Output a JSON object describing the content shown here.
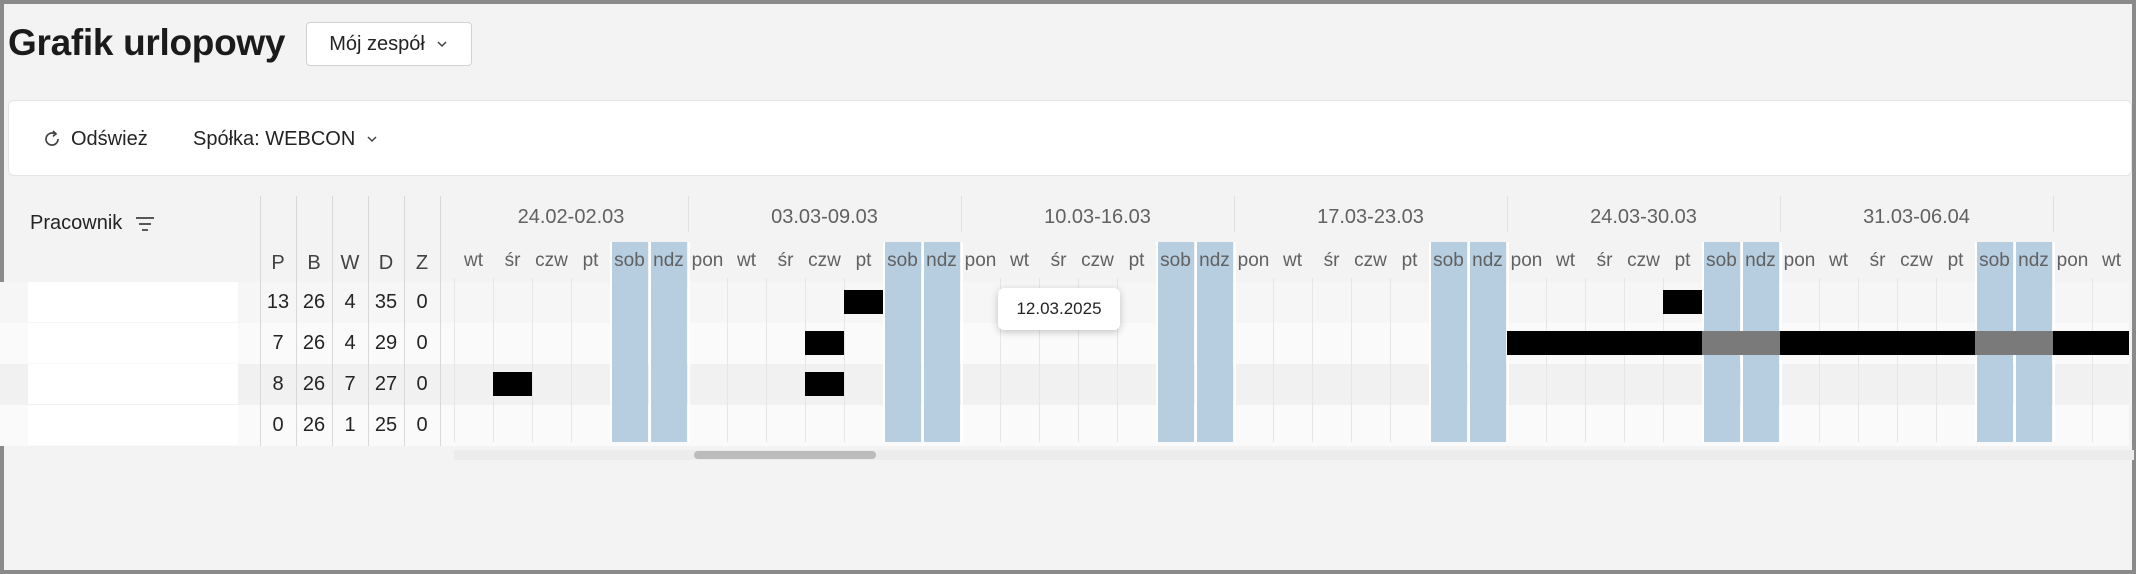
{
  "page": {
    "title": "Grafik urlopowy"
  },
  "team_filter": {
    "label": "Mój zespół"
  },
  "toolbar": {
    "refresh_label": "Odśwież",
    "company_label": "Spółka: WEBCON"
  },
  "table": {
    "employee_header": "Pracownik",
    "stat_headers": [
      "P",
      "B",
      "W",
      "D",
      "Z"
    ],
    "rows": [
      {
        "stats": [
          "13",
          "26",
          "4",
          "35",
          "0"
        ]
      },
      {
        "stats": [
          "7",
          "26",
          "4",
          "29",
          "0"
        ]
      },
      {
        "stats": [
          "8",
          "26",
          "7",
          "27",
          "0"
        ]
      },
      {
        "stats": [
          "0",
          "26",
          "1",
          "25",
          "0"
        ]
      }
    ]
  },
  "calendar": {
    "weeks": [
      "24.02-02.03",
      "03.03-09.03",
      "10.03-16.03",
      "17.03-23.03",
      "24.03-30.03",
      "31.03-06.04"
    ],
    "days": [
      "wt",
      "śr",
      "czw",
      "pt",
      "sob",
      "ndz",
      "pon",
      "wt",
      "śr",
      "czw",
      "pt",
      "sob",
      "ndz",
      "pon",
      "wt",
      "śr",
      "czw",
      "pt",
      "sob",
      "ndz",
      "pon",
      "wt",
      "śr",
      "czw",
      "pt",
      "sob",
      "ndz",
      "pon",
      "wt",
      "śr",
      "czw",
      "pt",
      "sob",
      "ndz",
      "pon",
      "wt",
      "śr",
      "czw",
      "pt",
      "sob",
      "ndz",
      "pon",
      "wt"
    ],
    "weekend_indices": [
      4,
      5,
      11,
      12,
      18,
      19,
      25,
      26,
      32,
      33,
      39,
      40
    ],
    "leaves": [
      {
        "row": 0,
        "start": 10,
        "end": 10
      },
      {
        "row": 0,
        "start": 31,
        "end": 31
      },
      {
        "row": 1,
        "start": 9,
        "end": 9
      },
      {
        "row": 1,
        "start": 27,
        "end": 42
      },
      {
        "row": 2,
        "start": 1,
        "end": 1
      },
      {
        "row": 2,
        "start": 9,
        "end": 9
      }
    ],
    "colors": {
      "weekend": "#b7cde0",
      "leave": "#000000",
      "leave_on_weekend": "#7a7a7a"
    }
  },
  "tooltip": {
    "text": "12.03.2025"
  }
}
